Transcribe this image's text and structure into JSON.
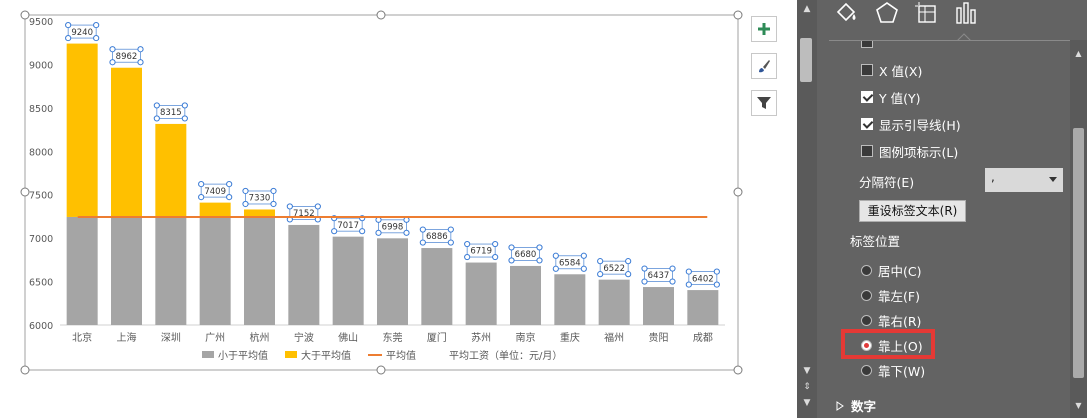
{
  "chart_data": {
    "type": "bar",
    "categories": [
      "北京",
      "上海",
      "深圳",
      "广州",
      "杭州",
      "宁波",
      "佛山",
      "东莞",
      "厦门",
      "苏州",
      "南京",
      "重庆",
      "福州",
      "贵阳",
      "成都"
    ],
    "values": [
      9240,
      8962,
      8315,
      7409,
      7330,
      7152,
      7017,
      6998,
      6886,
      6719,
      6680,
      6584,
      6522,
      6437,
      6402
    ],
    "data_labels": [
      "9240",
      "8962",
      "8315",
      "7409",
      "7330",
      "7152",
      "7017",
      "6998",
      "6886",
      "6719",
      "6680",
      "6584",
      "6522",
      "6437",
      "6402"
    ],
    "average": 7244,
    "ylim": [
      6000,
      9500
    ],
    "yticks": [
      "6000",
      "6500",
      "7000",
      "7500",
      "8000",
      "8500",
      "9000",
      "9500"
    ],
    "series": [
      {
        "name": "小于平均值",
        "color": "#a5a5a5"
      },
      {
        "name": "大于平均值",
        "color": "#ffc000"
      },
      {
        "name": "平均值",
        "color": "#ed7d31"
      }
    ],
    "note": "平均工资（单位：元/月）",
    "legend_position": "bottom",
    "grid": false
  },
  "panel": {
    "tabs": [
      {
        "icon": "fill-icon"
      },
      {
        "icon": "pentagon-icon"
      },
      {
        "icon": "size-properties-icon"
      },
      {
        "icon": "bar-chart-icon"
      }
    ],
    "label_contains": [
      {
        "label": "X 值(X)",
        "checked": false
      },
      {
        "label": "Y 值(Y)",
        "checked": true
      },
      {
        "label": "显示引导线(H)",
        "checked": true
      },
      {
        "label": "图例项标示(L)",
        "checked": false
      }
    ],
    "separator_label": "分隔符(E)",
    "separator_value": ",",
    "reset_button": "重设标签文本(R)",
    "label_position_title": "标签位置",
    "label_positions": [
      {
        "label": "居中(C)",
        "checked": false
      },
      {
        "label": "靠左(F)",
        "checked": false
      },
      {
        "label": "靠右(R)",
        "checked": false
      },
      {
        "label": "靠上(O)",
        "checked": true
      },
      {
        "label": "靠下(W)",
        "checked": false
      }
    ],
    "number_section": "数字",
    "highlight_color": "#e53935"
  }
}
